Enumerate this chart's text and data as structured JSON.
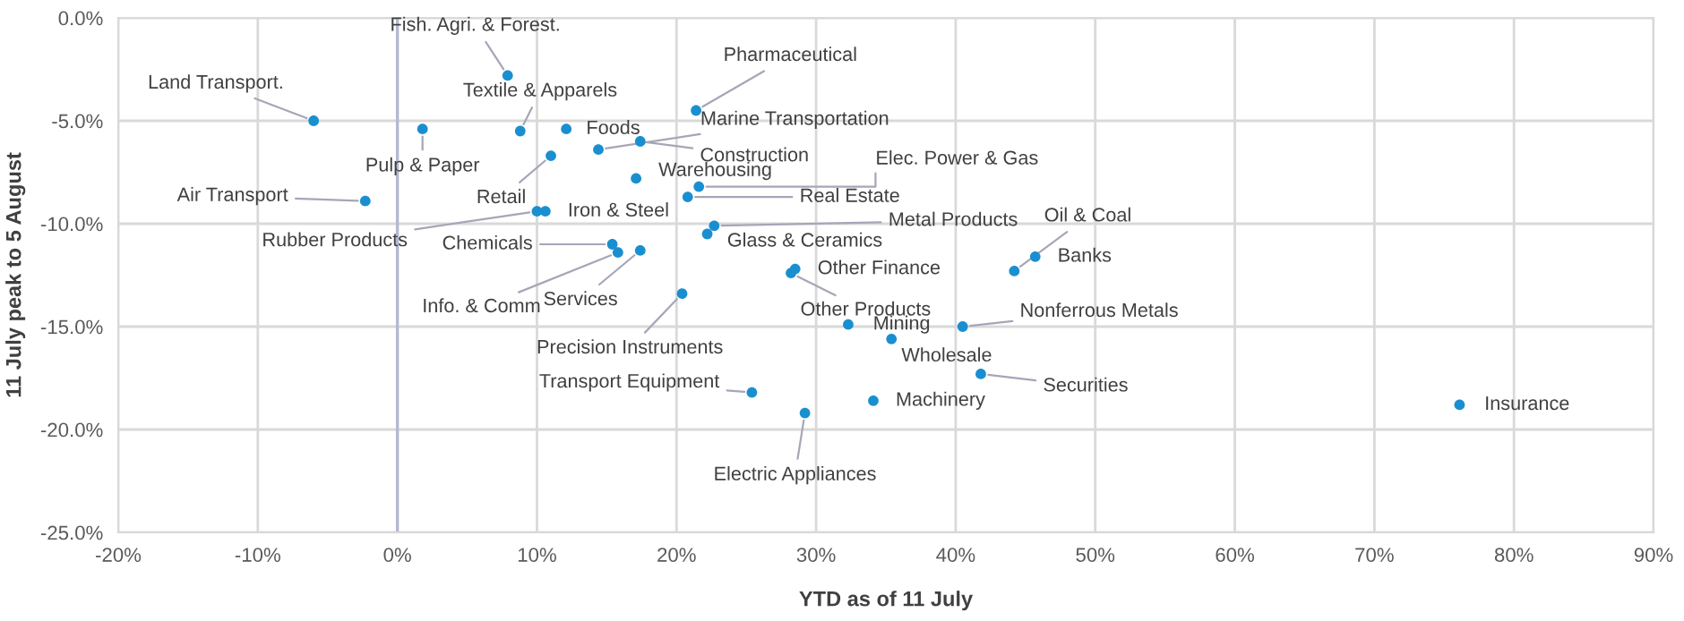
{
  "chart_data": {
    "type": "scatter",
    "xlabel": "YTD as of 11 July",
    "ylabel": "11 July peak to 5 August",
    "series": [
      {
        "color": "#1a8fd0",
        "x": [
          -6.0,
          -2.3,
          1.8,
          7.9,
          8.8,
          12.1,
          11.0,
          10.6,
          10.0,
          15.4,
          15.8,
          17.4,
          14.4,
          17.4,
          21.4,
          17.1,
          21.6,
          20.8,
          22.7,
          22.2,
          20.4,
          28.5,
          28.2,
          32.3,
          35.4,
          40.5,
          41.8,
          34.1,
          25.4,
          29.2,
          44.2,
          45.7,
          76.1
        ],
        "values": [
          -5.0,
          -8.9,
          -5.4,
          -2.8,
          -5.5,
          -5.4,
          -6.7,
          -9.4,
          -9.4,
          -11.0,
          -11.4,
          -11.3,
          -6.4,
          -6.0,
          -4.5,
          -7.8,
          -8.2,
          -8.7,
          -10.1,
          -10.5,
          -13.4,
          -12.2,
          -12.4,
          -14.9,
          -15.6,
          -15.0,
          -17.3,
          -18.6,
          -18.2,
          -19.2,
          -12.3,
          -11.6,
          -18.8
        ]
      }
    ],
    "annotations": [
      {
        "text": "Land Transport.",
        "x": -6.0,
        "y": -5.0
      },
      {
        "text": "Air Transport",
        "x": -2.3,
        "y": -8.9
      },
      {
        "text": "Pulp & Paper",
        "x": 1.8,
        "y": -5.4
      },
      {
        "text": "Fish. Agri. & Forest.",
        "x": 7.9,
        "y": -2.8
      },
      {
        "text": "Textile & Apparels",
        "x": 8.8,
        "y": -5.5
      },
      {
        "text": "Foods",
        "x": 12.1,
        "y": -5.4
      },
      {
        "text": "Retail",
        "x": 11.0,
        "y": -6.7
      },
      {
        "text": "Iron & Steel",
        "x": 10.6,
        "y": -9.4
      },
      {
        "text": "Rubber Products",
        "x": 10.0,
        "y": -9.4
      },
      {
        "text": "Chemicals",
        "x": 15.4,
        "y": -11.0
      },
      {
        "text": "Info. & Comm",
        "x": 15.8,
        "y": -11.4
      },
      {
        "text": "Services",
        "x": 17.4,
        "y": -11.3
      },
      {
        "text": "Marine Transportation",
        "x": 14.4,
        "y": -6.4
      },
      {
        "text": "Construction",
        "x": 17.4,
        "y": -6.0
      },
      {
        "text": "Pharmaceutical",
        "x": 21.4,
        "y": -4.5
      },
      {
        "text": "Warehousing",
        "x": 17.1,
        "y": -7.8
      },
      {
        "text": "Elec. Power & Gas",
        "x": 21.6,
        "y": -8.2
      },
      {
        "text": "Real Estate",
        "x": 20.8,
        "y": -8.7
      },
      {
        "text": "Metal Products",
        "x": 22.7,
        "y": -10.1
      },
      {
        "text": "Glass & Ceramics",
        "x": 22.2,
        "y": -10.5
      },
      {
        "text": "Precision Instruments",
        "x": 20.4,
        "y": -13.4
      },
      {
        "text": "Other Finance",
        "x": 28.5,
        "y": -12.2
      },
      {
        "text": "Other Products",
        "x": 28.2,
        "y": -12.4
      },
      {
        "text": "Mining",
        "x": 32.3,
        "y": -14.9
      },
      {
        "text": "Wholesale",
        "x": 35.4,
        "y": -15.6
      },
      {
        "text": "Nonferrous Metals",
        "x": 40.5,
        "y": -15.0
      },
      {
        "text": "Securities",
        "x": 41.8,
        "y": -17.3
      },
      {
        "text": "Machinery",
        "x": 34.1,
        "y": -18.6
      },
      {
        "text": "Transport Equipment",
        "x": 25.4,
        "y": -18.2
      },
      {
        "text": "Electric Appliances",
        "x": 29.2,
        "y": -19.2
      },
      {
        "text": "Oil & Coal",
        "x": 44.2,
        "y": -12.3
      },
      {
        "text": "Banks",
        "x": 45.7,
        "y": -11.6
      },
      {
        "text": "Insurance",
        "x": 76.1,
        "y": -18.8
      }
    ],
    "xlim": [
      -20,
      90
    ],
    "xticks": [
      {
        "value": -20,
        "label": "-20%"
      },
      {
        "value": -10,
        "label": "-10%"
      },
      {
        "value": 0,
        "label": "0%"
      },
      {
        "value": 10,
        "label": "10%"
      },
      {
        "value": 20,
        "label": "20%"
      },
      {
        "value": 30,
        "label": "30%"
      },
      {
        "value": 40,
        "label": "40%"
      },
      {
        "value": 50,
        "label": "50%"
      },
      {
        "value": 60,
        "label": "60%"
      },
      {
        "value": 70,
        "label": "70%"
      },
      {
        "value": 80,
        "label": "80%"
      },
      {
        "value": 90,
        "label": "90%"
      }
    ],
    "ylim": [
      -25,
      0
    ],
    "yticks": [
      {
        "value": -25,
        "label": "-25.0%"
      },
      {
        "value": -20,
        "label": "-20.0%"
      },
      {
        "value": -15,
        "label": "-15.0%"
      },
      {
        "value": -10,
        "label": "-10.0%"
      },
      {
        "value": -5,
        "label": "-5.0%"
      },
      {
        "value": 0,
        "label": "0.0%"
      }
    ],
    "ref_lines": [
      {
        "axis": "x",
        "value": 0,
        "color": "#b4b8d0"
      }
    ],
    "grid": true,
    "marker": "circle"
  }
}
